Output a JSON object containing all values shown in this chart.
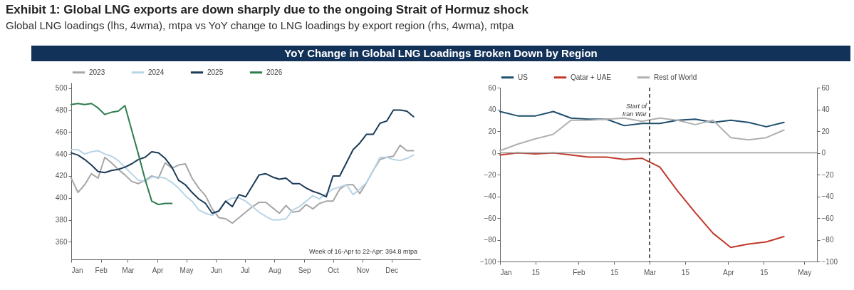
{
  "chart_data": [
    {
      "type": "line",
      "title": "Exhibit 1: Global LNG exports are down sharply due to the ongoing Strait of Hormuz shock",
      "subtitle": "Global LNG loadings (lhs, 4wma), mtpa vs YoY change to LNG loadings by export region (rhs, 4wma), mtpa",
      "xlim": [
        "--01-01",
        "--12-31"
      ],
      "xticks": [
        {
          "value": "--01-01",
          "label": "Jan"
        },
        {
          "value": "--02-01",
          "label": "Feb"
        },
        {
          "value": "--03-01",
          "label": "Mar"
        },
        {
          "value": "--04-01",
          "label": "Apr"
        },
        {
          "value": "--05-01",
          "label": "May"
        },
        {
          "value": "--06-01",
          "label": "Jun"
        },
        {
          "value": "--07-01",
          "label": "Jul"
        },
        {
          "value": "--08-01",
          "label": "Aug"
        },
        {
          "value": "--09-01",
          "label": "Sep"
        },
        {
          "value": "--10-01",
          "label": "Oct"
        },
        {
          "value": "--11-01",
          "label": "Nov"
        },
        {
          "value": "--12-01",
          "label": "Dec"
        }
      ],
      "ylim": [
        344,
        505
      ],
      "yticks": [
        360,
        380,
        400,
        420,
        440,
        460,
        480,
        500
      ],
      "grid": false,
      "legend": "top",
      "line_style": "solid",
      "annotations": [
        "Week of 16-Apr to 22-Apr: 394.8 mtpa"
      ],
      "series": [
        {
          "name": "2023",
          "color": "#a6a6a6",
          "x": [
            "--01-01",
            "--01-08",
            "--01-15",
            "--01-22",
            "--01-29",
            "--02-05",
            "--02-12",
            "--02-19",
            "--02-26",
            "--03-05",
            "--03-12",
            "--03-19",
            "--03-26",
            "--04-02",
            "--04-09",
            "--04-16",
            "--04-23",
            "--04-30",
            "--05-07",
            "--05-14",
            "--05-21",
            "--05-28",
            "--06-04",
            "--06-11",
            "--06-18",
            "--06-25",
            "--07-02",
            "--07-09",
            "--07-16",
            "--07-23",
            "--07-30",
            "--08-06",
            "--08-13",
            "--08-20",
            "--08-27",
            "--09-03",
            "--09-10",
            "--09-17",
            "--09-24",
            "--10-01",
            "--10-08",
            "--10-15",
            "--10-22",
            "--10-29",
            "--11-05",
            "--11-12",
            "--11-19",
            "--11-26",
            "--12-03",
            "--12-10",
            "--12-17",
            "--12-24"
          ],
          "values": [
            418,
            405,
            412,
            422,
            418,
            437,
            432,
            426,
            421,
            415,
            413,
            416,
            420,
            418,
            432,
            427,
            430,
            431,
            418,
            409,
            402,
            390,
            382,
            381,
            377,
            382,
            387,
            392,
            396,
            396,
            391,
            386,
            393,
            387,
            388,
            394,
            390,
            395,
            397,
            397,
            408,
            412,
            412,
            404,
            414,
            425,
            435,
            437,
            438,
            448,
            443,
            443
          ]
        },
        {
          "name": "2024",
          "color": "#b8d4e6",
          "x": [
            "--01-01",
            "--01-08",
            "--01-15",
            "--01-22",
            "--01-29",
            "--02-05",
            "--02-12",
            "--02-19",
            "--02-26",
            "--03-05",
            "--03-12",
            "--03-19",
            "--03-26",
            "--04-02",
            "--04-09",
            "--04-16",
            "--04-23",
            "--04-30",
            "--05-07",
            "--05-14",
            "--05-21",
            "--05-28",
            "--06-04",
            "--06-11",
            "--06-18",
            "--06-25",
            "--07-02",
            "--07-09",
            "--07-16",
            "--07-23",
            "--07-30",
            "--08-06",
            "--08-13",
            "--08-20",
            "--08-27",
            "--09-03",
            "--09-10",
            "--09-17",
            "--09-24",
            "--10-01",
            "--10-08",
            "--10-15",
            "--10-22",
            "--10-29",
            "--11-05",
            "--11-12",
            "--11-19",
            "--11-26",
            "--12-03",
            "--12-10",
            "--12-17",
            "--12-24"
          ],
          "values": [
            444,
            444,
            440,
            442,
            443,
            440,
            438,
            434,
            428,
            422,
            416,
            415,
            419,
            419,
            418,
            414,
            409,
            402,
            397,
            389,
            386,
            384,
            389,
            397,
            400,
            400,
            397,
            392,
            387,
            383,
            380,
            380,
            381,
            389,
            392,
            397,
            402,
            399,
            404,
            408,
            410,
            412,
            403,
            408,
            414,
            425,
            437,
            437,
            435,
            434,
            436,
            439
          ]
        },
        {
          "name": "2025",
          "color": "#1b3a57",
          "x": [
            "--01-01",
            "--01-08",
            "--01-15",
            "--01-22",
            "--01-29",
            "--02-05",
            "--02-12",
            "--02-19",
            "--02-26",
            "--03-05",
            "--03-12",
            "--03-19",
            "--03-26",
            "--04-02",
            "--04-09",
            "--04-16",
            "--04-23",
            "--04-30",
            "--05-07",
            "--05-14",
            "--05-21",
            "--05-28",
            "--06-04",
            "--06-11",
            "--06-18",
            "--06-25",
            "--07-02",
            "--07-09",
            "--07-16",
            "--07-23",
            "--07-30",
            "--08-06",
            "--08-13",
            "--08-20",
            "--08-27",
            "--09-03",
            "--09-10",
            "--09-17",
            "--09-24",
            "--10-01",
            "--10-08",
            "--10-15",
            "--10-22",
            "--10-29",
            "--11-05",
            "--11-12",
            "--11-19",
            "--11-26",
            "--12-03",
            "--12-10",
            "--12-17",
            "--12-24"
          ],
          "values": [
            441,
            439,
            435,
            430,
            424,
            423,
            425,
            426,
            428,
            431,
            435,
            437,
            442,
            441,
            436,
            428,
            416,
            412,
            405,
            399,
            395,
            386,
            388,
            397,
            392,
            403,
            401,
            411,
            421,
            422,
            419,
            417,
            418,
            413,
            413,
            409,
            406,
            404,
            401,
            420,
            420,
            432,
            444,
            450,
            458,
            458,
            468,
            470,
            480,
            480,
            479,
            474
          ]
        },
        {
          "name": "2026",
          "color": "#2e7d4f",
          "x": [
            "--01-01",
            "--01-08",
            "--01-15",
            "--01-22",
            "--01-29",
            "--02-05",
            "--02-12",
            "--02-19",
            "--02-26",
            "--03-05",
            "--03-12",
            "--03-19",
            "--03-26",
            "--04-02",
            "--04-09",
            "--04-16"
          ],
          "values": [
            485,
            486,
            485,
            486,
            482,
            476,
            478,
            479,
            484,
            462,
            440,
            417,
            397,
            394,
            395,
            395
          ]
        }
      ]
    },
    {
      "type": "line",
      "title": "YoY Change in Global LNG Loadings Broken Down by Region",
      "x": [
        "--01-01",
        "--01-08",
        "--01-15",
        "--01-22",
        "--01-29",
        "--02-05",
        "--02-12",
        "--02-19",
        "--02-26",
        "--03-05",
        "--03-12",
        "--03-19",
        "--03-26",
        "--04-02",
        "--04-09",
        "--04-16",
        "--04-23"
      ],
      "xlim": [
        "--01-01",
        "--05-06"
      ],
      "xticks": [
        {
          "value": "--01-01",
          "label": "Jan"
        },
        {
          "value": "--01-15",
          "label": "15"
        },
        {
          "value": "--02-01",
          "label": "Feb"
        },
        {
          "value": "--02-15",
          "label": "15"
        },
        {
          "value": "--03-01",
          "label": "Mar"
        },
        {
          "value": "--03-15",
          "label": "15"
        },
        {
          "value": "--04-01",
          "label": "Apr"
        },
        {
          "value": "--04-15",
          "label": "15"
        },
        {
          "value": "--05-01",
          "label": "May"
        }
      ],
      "ylim": [
        -100,
        60
      ],
      "yticks": [
        -100,
        -80,
        -60,
        -40,
        -20,
        0,
        20,
        40,
        60
      ],
      "y2lim": [
        -100,
        60
      ],
      "y2ticks": [
        -100,
        -80,
        -60,
        -40,
        -20,
        0,
        20,
        40,
        60
      ],
      "grid": false,
      "legend": "top",
      "line_style": "solid",
      "ref_lines": [
        {
          "axis": "y2",
          "value": 0,
          "color": "#999999"
        },
        {
          "axis": "x",
          "value": "--03-01",
          "label": "Start of Iran War",
          "color": "#222222",
          "line_style": "dashed"
        }
      ],
      "series": [
        {
          "name": "US",
          "color": "#1f4e6e",
          "values": [
            38,
            34,
            34,
            38,
            32,
            31,
            31,
            25,
            27,
            27,
            30,
            31,
            28,
            30,
            28,
            24,
            28
          ]
        },
        {
          "name": "Qatar + UAE",
          "color": "#c0392b",
          "values": [
            -2,
            0,
            -1,
            0,
            -2,
            -4,
            -4,
            -6,
            -5,
            -13,
            -35,
            -55,
            -74,
            -87,
            -84,
            -82,
            -77
          ]
        },
        {
          "name": "Rest of World",
          "color": "#b0b0b0",
          "values": [
            2,
            8,
            13,
            17,
            30,
            30,
            31,
            32,
            29,
            32,
            30,
            26,
            30,
            14,
            12,
            14,
            21
          ]
        }
      ]
    }
  ]
}
